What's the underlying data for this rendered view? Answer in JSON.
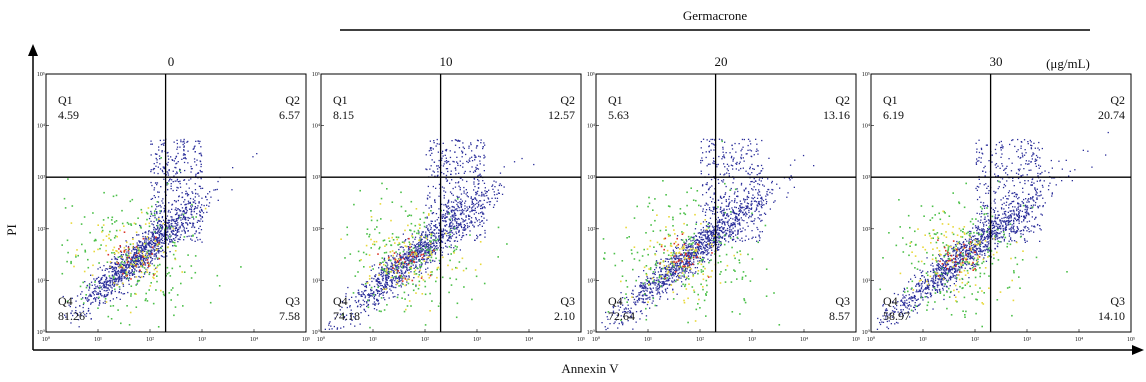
{
  "treatment_label": "Germacrone",
  "unit_label": "(μg/mL)",
  "x_axis_label": "Annexin V",
  "y_axis_label": "PI",
  "colors": {
    "axis": "#000000",
    "dots": "#2a2d9a",
    "core_green": "#4cc04a",
    "core_yellow": "#e8d83a",
    "core_red": "#d9362a"
  },
  "chart_data": [
    {
      "type": "scatter",
      "title": "0",
      "quadrants": {
        "Q1": "4.59",
        "Q2": "6.57",
        "Q3": "7.58",
        "Q4": "81.26"
      }
    },
    {
      "type": "scatter",
      "title": "10",
      "quadrants": {
        "Q1": "8.15",
        "Q2": "12.57",
        "Q3": "2.10",
        "Q4": "74.18"
      }
    },
    {
      "type": "scatter",
      "title": "20",
      "quadrants": {
        "Q1": "5.63",
        "Q2": "13.16",
        "Q3": "8.57",
        "Q4": "72.64"
      }
    },
    {
      "type": "scatter",
      "title": "30",
      "quadrants": {
        "Q1": "6.19",
        "Q2": "20.74",
        "Q3": "14.10",
        "Q4": "58.97"
      }
    }
  ]
}
